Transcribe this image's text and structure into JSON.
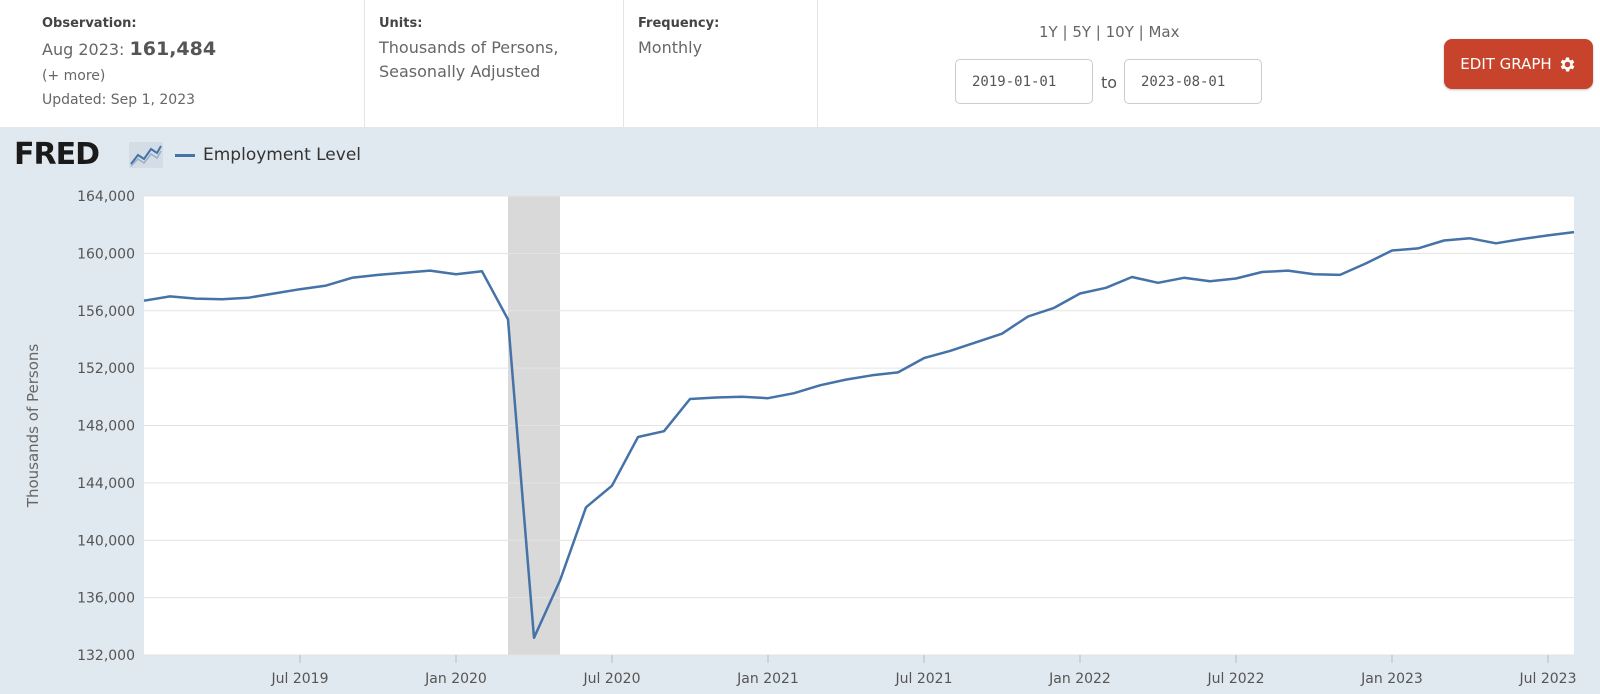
{
  "observation": {
    "label": "Observation:",
    "period": "Aug 2023:",
    "value": "161,484",
    "more": "(+ more)",
    "updated": "Updated: Sep 1, 2023"
  },
  "units": {
    "label": "Units:",
    "line1": "Thousands of Persons,",
    "line2": "Seasonally Adjusted"
  },
  "frequency": {
    "label": "Frequency:",
    "value": "Monthly"
  },
  "range": {
    "links": [
      "1Y",
      "5Y",
      "10Y",
      "Max"
    ],
    "separator": " | ",
    "start": "2019-01-01",
    "to_label": "to",
    "end": "2023-08-01"
  },
  "edit_button": {
    "label": "EDIT GRAPH",
    "icon": "gear-icon"
  },
  "logo": {
    "text": "FRED"
  },
  "colors": {
    "series": "#4572a7",
    "button": "#c8432b",
    "recession": "#d9d9d9",
    "chart_bg": "#e1e9f0"
  },
  "chart_data": {
    "type": "line",
    "title": "",
    "ylabel": "Thousands of Persons",
    "xlabel": "",
    "ylim": [
      132000,
      164000
    ],
    "yticks": [
      132000,
      136000,
      140000,
      144000,
      148000,
      152000,
      156000,
      160000,
      164000
    ],
    "ytick_labels": [
      "132,000",
      "136,000",
      "140,000",
      "144,000",
      "148,000",
      "152,000",
      "156,000",
      "160,000",
      "164,000"
    ],
    "xlim": [
      "2019-01",
      "2023-08"
    ],
    "xticks": [
      "2019-07",
      "2020-01",
      "2020-07",
      "2021-01",
      "2021-07",
      "2022-01",
      "2022-07",
      "2023-01",
      "2023-07"
    ],
    "xtick_labels": [
      "Jul 2019",
      "Jan 2020",
      "Jul 2020",
      "Jan 2021",
      "Jul 2021",
      "Jan 2022",
      "Jul 2022",
      "Jan 2023",
      "Jul 2023"
    ],
    "recession": [
      "2020-03",
      "2020-05"
    ],
    "grid": true,
    "legend": "top-left",
    "series": [
      {
        "name": "Employment Level",
        "x": [
          "2019-01",
          "2019-02",
          "2019-03",
          "2019-04",
          "2019-05",
          "2019-06",
          "2019-07",
          "2019-08",
          "2019-09",
          "2019-10",
          "2019-11",
          "2019-12",
          "2020-01",
          "2020-02",
          "2020-03",
          "2020-04",
          "2020-05",
          "2020-06",
          "2020-07",
          "2020-08",
          "2020-09",
          "2020-10",
          "2020-11",
          "2020-12",
          "2021-01",
          "2021-02",
          "2021-03",
          "2021-04",
          "2021-05",
          "2021-06",
          "2021-07",
          "2021-08",
          "2021-09",
          "2021-10",
          "2021-11",
          "2021-12",
          "2022-01",
          "2022-02",
          "2022-03",
          "2022-04",
          "2022-05",
          "2022-06",
          "2022-07",
          "2022-08",
          "2022-09",
          "2022-10",
          "2022-11",
          "2022-12",
          "2023-01",
          "2023-02",
          "2023-03",
          "2023-04",
          "2023-05",
          "2023-06",
          "2023-07",
          "2023-08"
        ],
        "values": [
          156700,
          157000,
          156850,
          156800,
          156900,
          157200,
          157500,
          157750,
          158300,
          158500,
          158650,
          158800,
          158550,
          158750,
          155400,
          133200,
          137200,
          142300,
          143800,
          147200,
          147600,
          149850,
          149950,
          150000,
          149900,
          150250,
          150800,
          151200,
          151500,
          151700,
          152700,
          153200,
          153800,
          154400,
          155600,
          156200,
          157200,
          157600,
          158350,
          157950,
          158300,
          158050,
          158250,
          158700,
          158800,
          158550,
          158500,
          159300,
          160200,
          160350,
          160900,
          161050,
          160700,
          161000,
          161250,
          161484
        ]
      }
    ]
  }
}
